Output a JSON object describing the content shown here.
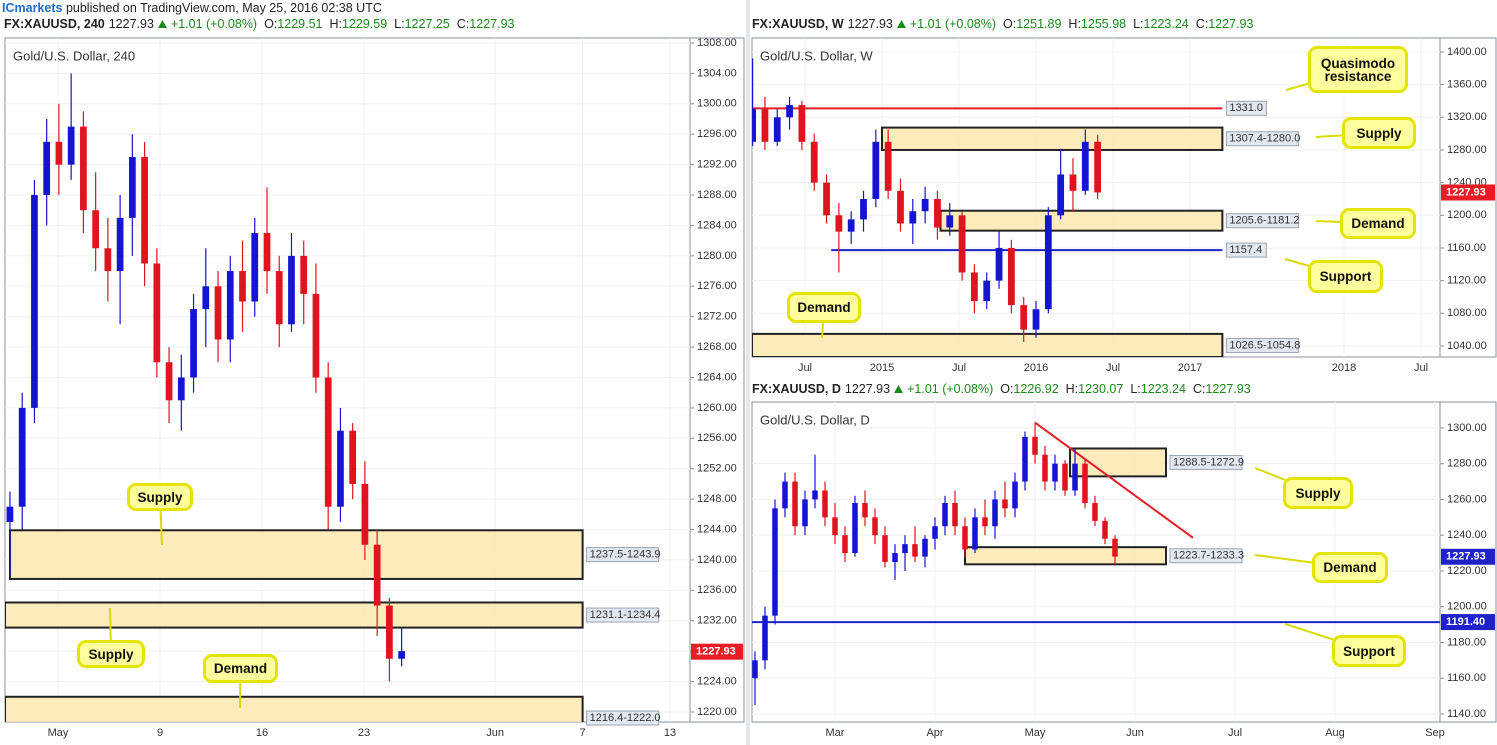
{
  "header": {
    "brand": "ICmarkets",
    "text": "published on TradingView.com, May 25, 2016 02:38 UTC"
  },
  "chart_data": [
    {
      "type": "candlestick",
      "title": "Gold/U.S. Dollar, 240",
      "info": {
        "symbol": "FX:XAUUSD, 240",
        "price": "1227.93",
        "change": "+1.01 (+0.08%)",
        "ohlc": [
          {
            "label": "O:",
            "value": "1229.51"
          },
          {
            "label": "H:",
            "value": "1229.59"
          },
          {
            "label": "L:",
            "value": "1227.25"
          },
          {
            "label": "C:",
            "value": "1227.93"
          }
        ]
      },
      "up_color": "#1414d2",
      "down_color": "#e0141e",
      "grid": true,
      "x": [
        -1.3,
        -0.46,
        0.38,
        1.22,
        2.06,
        2.9,
        3.74,
        4.58,
        5.42,
        6.26,
        7.1,
        7.94,
        8.78,
        9.62,
        10.46,
        11.3,
        12.14,
        12.98,
        13.82,
        14.66,
        15.5,
        16.34,
        17.18,
        18.02,
        18.86,
        19.7,
        20.54,
        21.38,
        22.22,
        23.06,
        23.9,
        24.74,
        25.58
      ],
      "open": [
        1245,
        1247,
        1260,
        1288,
        1295,
        1292,
        1297,
        1286,
        1281,
        1278,
        1285,
        1293,
        1279,
        1266,
        1261,
        1264,
        1273,
        1276,
        1269,
        1278,
        1274,
        1283,
        1278,
        1271,
        1280,
        1275,
        1264,
        1247,
        1257,
        1250,
        1242,
        1234,
        1227
      ],
      "high": [
        1249,
        1262,
        1290,
        1298,
        1300,
        1304,
        1299,
        1291,
        1285,
        1288,
        1296,
        1295,
        1281,
        1268,
        1267,
        1275,
        1281,
        1278,
        1280,
        1282,
        1285,
        1289,
        1280,
        1283,
        1282,
        1279,
        1266,
        1260,
        1258,
        1253,
        1244,
        1235,
        1231
      ],
      "low": [
        1238,
        1244,
        1258,
        1284,
        1288,
        1290,
        1283,
        1278,
        1274,
        1271,
        1280,
        1276,
        1264,
        1258,
        1257,
        1262,
        1268,
        1266,
        1266,
        1270,
        1272,
        1275,
        1268,
        1270,
        1271,
        1262,
        1244,
        1245,
        1248,
        1240,
        1230,
        1224,
        1226
      ],
      "close": [
        1247,
        1260,
        1288,
        1295,
        1292,
        1297,
        1286,
        1281,
        1278,
        1285,
        1293,
        1279,
        1266,
        1261,
        1264,
        1273,
        1276,
        1269,
        1278,
        1274,
        1283,
        1278,
        1271,
        1280,
        1275,
        1264,
        1247,
        1257,
        1250,
        1242,
        1234,
        1227,
        1228
      ],
      "xlim": [
        -1.64,
        45.37
      ],
      "xticks": [
        {
          "value": 2,
          "label": "May"
        },
        9,
        16,
        23,
        {
          "value": 32,
          "label": "Jun"
        },
        {
          "value": 38,
          "label": "7"
        },
        {
          "value": 44,
          "label": "13"
        }
      ],
      "ylim": [
        1218.68,
        1308.66
      ],
      "yticks": [
        {
          "value": 1220,
          "label": "1220.00"
        },
        {
          "value": 1224,
          "label": "1224.00"
        },
        {
          "value": 1228,
          "label": "1228.00"
        },
        {
          "value": 1232,
          "label": "1232.00"
        },
        {
          "value": 1236,
          "label": "1236.00"
        },
        {
          "value": 1240,
          "label": "1240.00"
        },
        {
          "value": 1244,
          "label": "1244.00"
        },
        {
          "value": 1248,
          "label": "1248.00"
        },
        {
          "value": 1252,
          "label": "1252.00"
        },
        {
          "value": 1256,
          "label": "1256.00"
        },
        {
          "value": 1260,
          "label": "1260.00"
        },
        {
          "value": 1264,
          "label": "1264.00"
        },
        {
          "value": 1268,
          "label": "1268.00"
        },
        {
          "value": 1272,
          "label": "1272.00"
        },
        {
          "value": 1276,
          "label": "1276.00"
        },
        {
          "value": 1280,
          "label": "1280.00"
        },
        {
          "value": 1284,
          "label": "1284.00"
        },
        {
          "value": 1288,
          "label": "1288.00"
        },
        {
          "value": 1292,
          "label": "1292.00"
        },
        {
          "value": 1296,
          "label": "1296.00"
        },
        {
          "value": 1300,
          "label": "1300.00"
        },
        {
          "value": 1304,
          "label": "1304.00"
        },
        {
          "value": 1308,
          "label": "1308.00"
        }
      ],
      "zones": [
        {
          "label": "1237.5-1243.9",
          "low": 1237.5,
          "high": 1243.9,
          "x": [
            -1.3,
            38
          ]
        },
        {
          "label": "1231.1-1234.4",
          "low": 1231.1,
          "high": 1234.4,
          "x": [
            -1.64,
            38
          ]
        },
        {
          "label": "1216.4-1222.0",
          "low": 1216.4,
          "high": 1222.0,
          "x": [
            -1.64,
            38
          ]
        }
      ],
      "hlines": [],
      "last": 1227.93,
      "last_color": "#e81c24",
      "annotations": [
        "Supply",
        "Supply",
        "Demand"
      ]
    },
    {
      "type": "candlestick",
      "title": "Gold/U.S. Dollar, W",
      "info": {
        "symbol": "FX:XAUUSD, W",
        "price": "1227.93",
        "change": "+1.01 (+0.08%)",
        "ohlc": [
          {
            "label": "O:",
            "value": "1251.89"
          },
          {
            "label": "H:",
            "value": "1255.98"
          },
          {
            "label": "L:",
            "value": "1223.24"
          },
          {
            "label": "C:",
            "value": "1227.93"
          }
        ]
      },
      "up_color": "#1414d2",
      "down_color": "#e0141e",
      "grid": true,
      "x": [
        2014.16,
        2014.24,
        2014.32,
        2014.4,
        2014.48,
        2014.56,
        2014.64,
        2014.72,
        2014.8,
        2014.88,
        2014.96,
        2015.04,
        2015.12,
        2015.2,
        2015.28,
        2015.36,
        2015.44,
        2015.52,
        2015.6,
        2015.68,
        2015.76,
        2015.84,
        2015.92,
        2016.0,
        2016.08,
        2016.16,
        2016.24,
        2016.32,
        2016.4
      ],
      "open": [
        1290,
        1330,
        1290,
        1320,
        1335,
        1290,
        1240,
        1200,
        1180,
        1195,
        1220,
        1290,
        1230,
        1190,
        1205,
        1220,
        1185,
        1200,
        1130,
        1095,
        1120,
        1160,
        1090,
        1060,
        1085,
        1200,
        1250,
        1230,
        1290
      ],
      "high": [
        1392,
        1345,
        1330,
        1345,
        1340,
        1300,
        1250,
        1215,
        1205,
        1230,
        1305,
        1305,
        1245,
        1220,
        1235,
        1230,
        1215,
        1205,
        1140,
        1130,
        1180,
        1170,
        1100,
        1095,
        1210,
        1280,
        1270,
        1305,
        1298
      ],
      "low": [
        1285,
        1280,
        1285,
        1305,
        1280,
        1230,
        1190,
        1130,
        1165,
        1180,
        1210,
        1220,
        1180,
        1165,
        1190,
        1170,
        1175,
        1120,
        1080,
        1085,
        1110,
        1080,
        1045,
        1050,
        1080,
        1195,
        1205,
        1225,
        1220
      ],
      "close": [
        1330,
        1290,
        1320,
        1335,
        1290,
        1240,
        1200,
        1180,
        1195,
        1220,
        1290,
        1230,
        1190,
        1205,
        1220,
        1185,
        1200,
        1130,
        1095,
        1120,
        1160,
        1090,
        1060,
        1085,
        1200,
        1250,
        1230,
        1290,
        1228
      ],
      "xlim": [
        2014.156,
        2018.623
      ],
      "xticks": [
        {
          "value": 2014.5,
          "label": "Jul"
        },
        2015,
        {
          "value": 2015.5,
          "label": "Jul"
        },
        2016,
        {
          "value": 2016.5,
          "label": "Jul"
        },
        2017,
        2018,
        {
          "value": 2018.5,
          "label": "Jul"
        }
      ],
      "ylim": [
        1026.5,
        1417.1
      ],
      "yticks": [
        {
          "value": 1040,
          "label": "1040.00"
        },
        {
          "value": 1080,
          "label": "1080.00"
        },
        {
          "value": 1120,
          "label": "1120.00"
        },
        {
          "value": 1160,
          "label": "1160.00"
        },
        {
          "value": 1200,
          "label": "1200.00"
        },
        {
          "value": 1240,
          "label": "1240.00"
        },
        {
          "value": 1280,
          "label": "1280.00"
        },
        {
          "value": 1320,
          "label": "1320.00"
        },
        {
          "value": 1360,
          "label": "1360.00"
        },
        {
          "value": 1400,
          "label": "1400.00"
        }
      ],
      "zones": [
        {
          "label": "1307.4-1280.0",
          "low": 1280.0,
          "high": 1307.4,
          "x": [
            2015.0,
            2017.21
          ]
        },
        {
          "label": "1205.6-1181.2",
          "low": 1181.2,
          "high": 1205.6,
          "x": [
            2015.38,
            2017.21
          ]
        },
        {
          "label": "1026.5-1054.8",
          "low": 1026.5,
          "high": 1054.8,
          "x": [
            2014.156,
            2017.21
          ]
        }
      ],
      "hlines": [
        {
          "value": 1331.0,
          "label": "1331.0",
          "color": "#e81c24",
          "x": [
            2014.156,
            2017.21
          ]
        },
        {
          "value": 1157.4,
          "label": "1157.4",
          "color": "#1e22c8",
          "x": [
            2014.67,
            2017.21
          ]
        }
      ],
      "last": 1227.93,
      "last_color": "#e81c24",
      "annotations": [
        "Quasimodo resistance",
        "Supply",
        "Demand",
        "Support",
        "Demand"
      ]
    },
    {
      "type": "candlestick",
      "title": "Gold/U.S. Dollar, D",
      "info": {
        "symbol": "FX:XAUUSD, D",
        "price": "1227.93",
        "change": "+1.01 (+0.08%)",
        "ohlc": [
          {
            "label": "O:",
            "value": "1226.92"
          },
          {
            "label": "H:",
            "value": "1230.07"
          },
          {
            "label": "L:",
            "value": "1223.24"
          },
          {
            "label": "C:",
            "value": "1227.93"
          }
        ]
      },
      "up_color": "#1414d2",
      "down_color": "#e0141e",
      "grid": true,
      "x": [
        2.2,
        2.3,
        2.4,
        2.5,
        2.6,
        2.7,
        2.8,
        2.9,
        3.0,
        3.1,
        3.2,
        3.3,
        3.4,
        3.5,
        3.6,
        3.7,
        3.8,
        3.9,
        4.0,
        4.1,
        4.2,
        4.3,
        4.4,
        4.5,
        4.6,
        4.7,
        4.8,
        4.9,
        5.0,
        5.1,
        5.2,
        5.3,
        5.4,
        5.5,
        5.6,
        5.7,
        5.8
      ],
      "open": [
        1160,
        1170,
        1195,
        1255,
        1270,
        1245,
        1260,
        1265,
        1250,
        1240,
        1230,
        1258,
        1250,
        1240,
        1225,
        1230,
        1235,
        1228,
        1238,
        1245,
        1258,
        1245,
        1232,
        1250,
        1245,
        1260,
        1255,
        1270,
        1295,
        1285,
        1270,
        1280,
        1265,
        1280,
        1258,
        1248,
        1238
      ],
      "high": [
        1175,
        1200,
        1260,
        1275,
        1275,
        1265,
        1285,
        1270,
        1258,
        1245,
        1262,
        1265,
        1255,
        1245,
        1235,
        1240,
        1245,
        1240,
        1250,
        1262,
        1265,
        1250,
        1255,
        1260,
        1265,
        1270,
        1275,
        1298,
        1303,
        1290,
        1285,
        1282,
        1288,
        1283,
        1262,
        1250,
        1240
      ],
      "low": [
        1145,
        1165,
        1190,
        1250,
        1240,
        1240,
        1255,
        1245,
        1235,
        1225,
        1228,
        1245,
        1235,
        1222,
        1215,
        1220,
        1225,
        1222,
        1232,
        1240,
        1240,
        1228,
        1230,
        1240,
        1238,
        1250,
        1250,
        1265,
        1280,
        1265,
        1265,
        1262,
        1262,
        1255,
        1245,
        1235,
        1223
      ],
      "close": [
        1170,
        1195,
        1255,
        1270,
        1245,
        1260,
        1265,
        1250,
        1240,
        1230,
        1258,
        1250,
        1240,
        1225,
        1230,
        1235,
        1228,
        1238,
        1245,
        1258,
        1245,
        1232,
        1250,
        1245,
        1260,
        1255,
        1270,
        1295,
        1285,
        1270,
        1280,
        1265,
        1280,
        1258,
        1248,
        1238,
        1228
      ],
      "xlim": [
        2.17,
        9.05
      ],
      "xticks": [
        {
          "value": 3,
          "label": "Mar"
        },
        {
          "value": 4,
          "label": "Apr"
        },
        {
          "value": 5,
          "label": "May"
        },
        {
          "value": 6,
          "label": "Jun"
        },
        {
          "value": 7,
          "label": "Jul"
        },
        {
          "value": 8,
          "label": "Aug"
        },
        {
          "value": 9,
          "label": "Sep"
        }
      ],
      "ylim": [
        1135.5,
        1314.5
      ],
      "yticks": [
        {
          "value": 1140,
          "label": "1140.00"
        },
        {
          "value": 1160,
          "label": "1160.00"
        },
        {
          "value": 1180,
          "label": "1180.00"
        },
        {
          "value": 1200,
          "label": "1200.00"
        },
        {
          "value": 1220,
          "label": "1220.00"
        },
        {
          "value": 1240,
          "label": "1240.00"
        },
        {
          "value": 1260,
          "label": "1260.00"
        },
        {
          "value": 1280,
          "label": "1280.00"
        },
        {
          "value": 1300,
          "label": "1300.00"
        }
      ],
      "zones": [
        {
          "label": "1288.5-1272.9",
          "low": 1272.9,
          "high": 1288.5,
          "x": [
            5.35,
            6.31
          ]
        },
        {
          "label": "1223.7-1233.3",
          "low": 1223.7,
          "high": 1233.3,
          "x": [
            4.3,
            6.31
          ]
        }
      ],
      "hlines": [
        {
          "value": 1191.4,
          "label": "1191.40",
          "color": "#1e22c8",
          "x": [
            2.17,
            9.05
          ],
          "axis_tag": true
        }
      ],
      "trendline": {
        "x": [
          5.0,
          6.58
        ],
        "y": [
          1303,
          1238.5
        ],
        "color": "#e81c24"
      },
      "last": 1227.93,
      "last_color": "#1e22c8",
      "annotations": [
        "Supply",
        "Demand",
        "Support"
      ]
    }
  ]
}
